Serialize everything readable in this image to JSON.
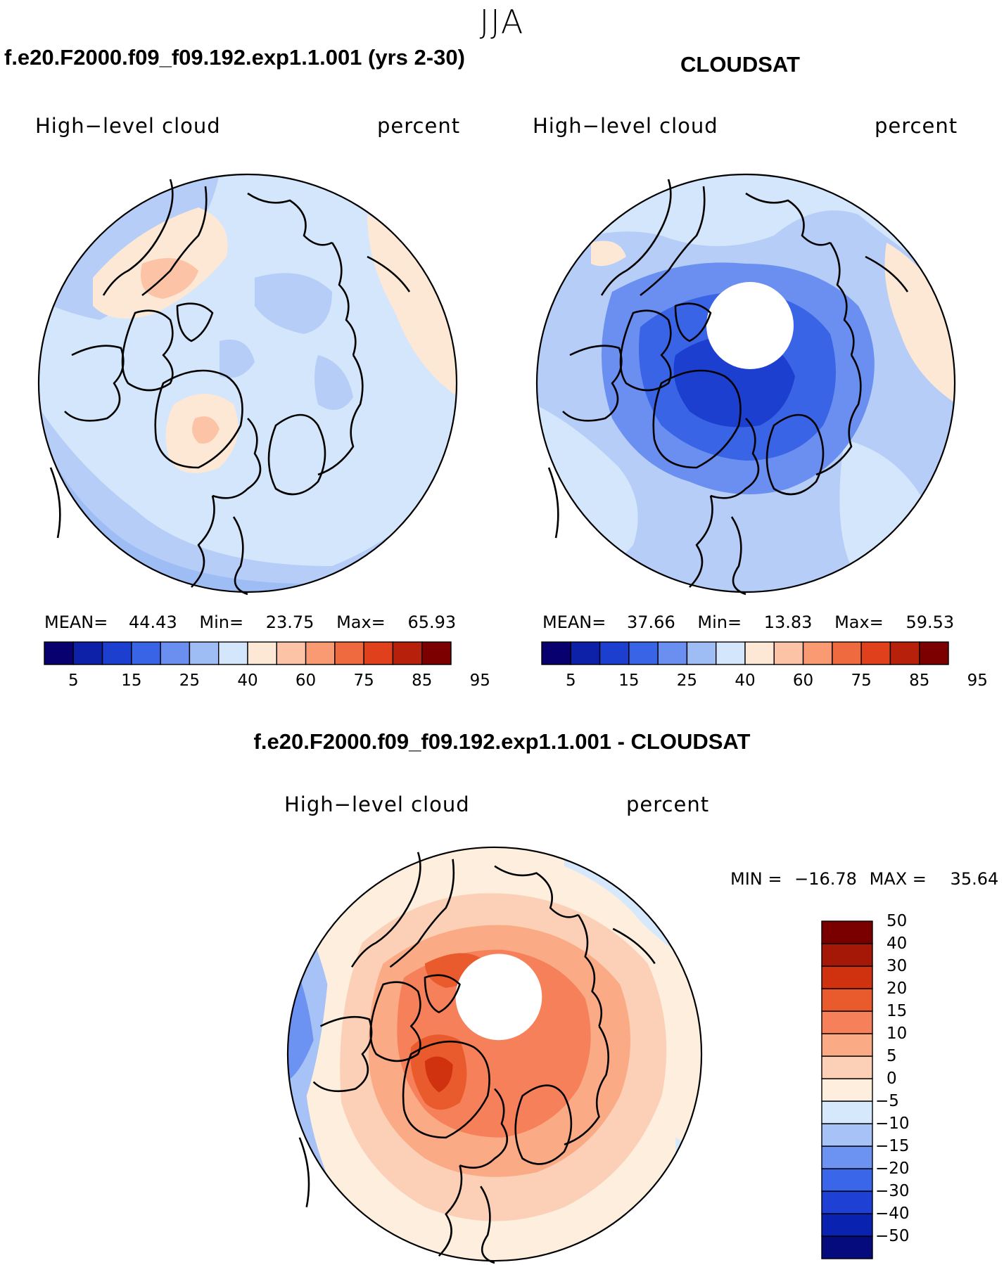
{
  "page": {
    "season": "JJA"
  },
  "panels": [
    {
      "case_title": "f.e20.F2000.f09_f09.192.exp1.1.001 (yrs 2-30)",
      "variable": "High−level cloud",
      "units": "percent",
      "stats": {
        "mean_label": "MEAN=",
        "mean": "44.43",
        "min_label": "Min=",
        "min": "23.75",
        "max_label": "Max=",
        "max": "65.93"
      }
    },
    {
      "case_title": "CLOUDSAT",
      "variable": "High−level cloud",
      "units": "percent",
      "stats": {
        "mean_label": "MEAN=",
        "mean": "37.66",
        "min_label": "Min=",
        "min": "13.83",
        "max_label": "Max=",
        "max": "59.53"
      }
    },
    {
      "case_title": "f.e20.F2000.f09_f09.192.exp1.1.001 - CLOUDSAT",
      "variable": "High−level cloud",
      "units": "percent",
      "stats": {
        "min_label": "MIN =",
        "min": "−16.78",
        "max_label": "MAX =",
        "max": "35.64"
      }
    }
  ],
  "abs_colorbar": {
    "colors": [
      "#08006e",
      "#0d20a8",
      "#1d3fd0",
      "#3a64e6",
      "#6a8ff0",
      "#9fbdf5",
      "#d4e6fb",
      "#fde8d6",
      "#fcc3a6",
      "#fa9a73",
      "#f06a3f",
      "#e0401b",
      "#b7200b",
      "#7d0000"
    ],
    "tick_labels": [
      "5",
      "15",
      "25",
      "40",
      "60",
      "75",
      "85",
      "95"
    ]
  },
  "diff_colorbar": {
    "colors": [
      "#050a7c",
      "#0a22b0",
      "#1f40d4",
      "#3a66ea",
      "#6c92f2",
      "#a6c2f7",
      "#d6e8fc",
      "#fdeede",
      "#fcd0b6",
      "#faab86",
      "#f5805a",
      "#e95a2d",
      "#d0320f",
      "#a51808",
      "#7a0000"
    ],
    "tick_labels": [
      "−50",
      "−40",
      "−30",
      "−20",
      "−15",
      "−10",
      "−5",
      "0",
      "5",
      "10",
      "15",
      "20",
      "30",
      "40",
      "50"
    ]
  }
}
